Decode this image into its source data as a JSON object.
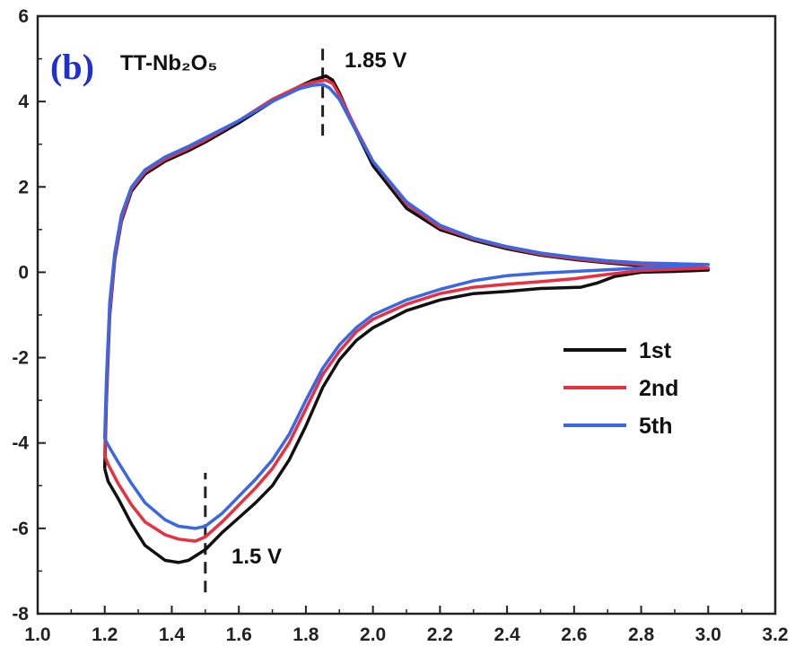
{
  "chart_data": {
    "type": "line",
    "panel_label": "(b)",
    "title": "TT-Nb₂O₅",
    "xlim": [
      1.0,
      3.2
    ],
    "ylim": [
      -8,
      6
    ],
    "x_ticks": [
      1.0,
      1.2,
      1.4,
      1.6,
      1.8,
      2.0,
      2.2,
      2.4,
      2.6,
      2.8,
      3.0,
      3.2
    ],
    "x_tick_labels": [
      "1.0",
      "1.2",
      "1.4",
      "1.6",
      "1.8",
      "2.0",
      "2.2",
      "2.4",
      "2.6",
      "2.8",
      "3.0",
      "3.2"
    ],
    "y_ticks": [
      -8,
      -6,
      -4,
      -2,
      0,
      2,
      4,
      6
    ],
    "y_tick_labels": [
      "-8",
      "-6",
      "-4",
      "-2",
      "0",
      "2",
      "4",
      "6"
    ],
    "grid": false,
    "legend_position": "right",
    "annotations": [
      {
        "text": "1.85 V",
        "x": 1.85,
        "y_from": 3.2,
        "y_to": 5.4
      },
      {
        "text": "1.5 V",
        "x": 1.5,
        "y_from": -7.5,
        "y_to": -4.7
      }
    ],
    "series": [
      {
        "name": "1st",
        "color": "#111111",
        "anodic": [
          [
            1.2,
            -4.6
          ],
          [
            1.205,
            -3.0
          ],
          [
            1.215,
            -1.0
          ],
          [
            1.23,
            0.3
          ],
          [
            1.25,
            1.2
          ],
          [
            1.28,
            1.9
          ],
          [
            1.32,
            2.3
          ],
          [
            1.38,
            2.6
          ],
          [
            1.45,
            2.85
          ],
          [
            1.5,
            3.05
          ],
          [
            1.6,
            3.5
          ],
          [
            1.7,
            4.0
          ],
          [
            1.78,
            4.35
          ],
          [
            1.82,
            4.5
          ],
          [
            1.86,
            4.6
          ],
          [
            1.88,
            4.5
          ],
          [
            1.9,
            4.2
          ],
          [
            1.95,
            3.3
          ],
          [
            2.0,
            2.5
          ],
          [
            2.1,
            1.5
          ],
          [
            2.2,
            1.0
          ],
          [
            2.3,
            0.75
          ],
          [
            2.4,
            0.55
          ],
          [
            2.5,
            0.4
          ],
          [
            2.6,
            0.3
          ],
          [
            2.7,
            0.22
          ],
          [
            2.8,
            0.15
          ],
          [
            2.9,
            0.12
          ],
          [
            3.0,
            0.05
          ]
        ],
        "cathodic": [
          [
            3.0,
            0.05
          ],
          [
            2.9,
            0.02
          ],
          [
            2.8,
            0.0
          ],
          [
            2.72,
            -0.1
          ],
          [
            2.67,
            -0.25
          ],
          [
            2.62,
            -0.35
          ],
          [
            2.5,
            -0.38
          ],
          [
            2.4,
            -0.45
          ],
          [
            2.3,
            -0.5
          ],
          [
            2.2,
            -0.65
          ],
          [
            2.1,
            -0.9
          ],
          [
            2.0,
            -1.3
          ],
          [
            1.95,
            -1.6
          ],
          [
            1.9,
            -2.05
          ],
          [
            1.85,
            -2.7
          ],
          [
            1.8,
            -3.6
          ],
          [
            1.75,
            -4.4
          ],
          [
            1.7,
            -5.0
          ],
          [
            1.65,
            -5.4
          ],
          [
            1.6,
            -5.75
          ],
          [
            1.55,
            -6.1
          ],
          [
            1.5,
            -6.5
          ],
          [
            1.45,
            -6.75
          ],
          [
            1.42,
            -6.8
          ],
          [
            1.38,
            -6.75
          ],
          [
            1.32,
            -6.4
          ],
          [
            1.28,
            -5.9
          ],
          [
            1.24,
            -5.3
          ],
          [
            1.21,
            -4.9
          ],
          [
            1.2,
            -4.6
          ]
        ]
      },
      {
        "name": "2nd",
        "color": "#e8303f",
        "anodic": [
          [
            1.2,
            -4.3
          ],
          [
            1.205,
            -2.8
          ],
          [
            1.215,
            -0.9
          ],
          [
            1.23,
            0.35
          ],
          [
            1.25,
            1.25
          ],
          [
            1.28,
            1.95
          ],
          [
            1.32,
            2.35
          ],
          [
            1.38,
            2.65
          ],
          [
            1.45,
            2.9
          ],
          [
            1.5,
            3.1
          ],
          [
            1.6,
            3.55
          ],
          [
            1.7,
            4.05
          ],
          [
            1.78,
            4.35
          ],
          [
            1.82,
            4.45
          ],
          [
            1.86,
            4.5
          ],
          [
            1.88,
            4.42
          ],
          [
            1.9,
            4.15
          ],
          [
            1.95,
            3.35
          ],
          [
            2.0,
            2.6
          ],
          [
            2.1,
            1.6
          ],
          [
            2.2,
            1.05
          ],
          [
            2.3,
            0.78
          ],
          [
            2.4,
            0.58
          ],
          [
            2.5,
            0.42
          ],
          [
            2.6,
            0.32
          ],
          [
            2.7,
            0.24
          ],
          [
            2.8,
            0.18
          ],
          [
            2.9,
            0.14
          ],
          [
            3.0,
            0.1
          ]
        ],
        "cathodic": [
          [
            3.0,
            0.1
          ],
          [
            2.9,
            0.07
          ],
          [
            2.8,
            0.04
          ],
          [
            2.7,
            -0.05
          ],
          [
            2.6,
            -0.15
          ],
          [
            2.5,
            -0.22
          ],
          [
            2.4,
            -0.28
          ],
          [
            2.3,
            -0.35
          ],
          [
            2.2,
            -0.5
          ],
          [
            2.1,
            -0.75
          ],
          [
            2.0,
            -1.1
          ],
          [
            1.95,
            -1.4
          ],
          [
            1.9,
            -1.85
          ],
          [
            1.85,
            -2.4
          ],
          [
            1.8,
            -3.2
          ],
          [
            1.75,
            -4.0
          ],
          [
            1.7,
            -4.6
          ],
          [
            1.65,
            -5.05
          ],
          [
            1.6,
            -5.45
          ],
          [
            1.55,
            -5.85
          ],
          [
            1.5,
            -6.2
          ],
          [
            1.47,
            -6.3
          ],
          [
            1.42,
            -6.25
          ],
          [
            1.38,
            -6.15
          ],
          [
            1.32,
            -5.85
          ],
          [
            1.28,
            -5.45
          ],
          [
            1.24,
            -4.95
          ],
          [
            1.21,
            -4.5
          ],
          [
            1.2,
            -4.3
          ]
        ]
      },
      {
        "name": "5th",
        "color": "#3a66e8",
        "anodic": [
          [
            1.2,
            -3.9
          ],
          [
            1.205,
            -2.5
          ],
          [
            1.215,
            -0.7
          ],
          [
            1.23,
            0.45
          ],
          [
            1.25,
            1.35
          ],
          [
            1.28,
            2.0
          ],
          [
            1.32,
            2.4
          ],
          [
            1.38,
            2.7
          ],
          [
            1.45,
            2.95
          ],
          [
            1.5,
            3.15
          ],
          [
            1.6,
            3.55
          ],
          [
            1.7,
            4.0
          ],
          [
            1.78,
            4.3
          ],
          [
            1.82,
            4.38
          ],
          [
            1.85,
            4.4
          ],
          [
            1.87,
            4.32
          ],
          [
            1.9,
            4.05
          ],
          [
            1.95,
            3.3
          ],
          [
            2.0,
            2.6
          ],
          [
            2.1,
            1.65
          ],
          [
            2.2,
            1.1
          ],
          [
            2.3,
            0.8
          ],
          [
            2.4,
            0.6
          ],
          [
            2.5,
            0.45
          ],
          [
            2.6,
            0.35
          ],
          [
            2.7,
            0.27
          ],
          [
            2.8,
            0.22
          ],
          [
            2.9,
            0.2
          ],
          [
            3.0,
            0.18
          ]
        ],
        "cathodic": [
          [
            3.0,
            0.18
          ],
          [
            2.9,
            0.14
          ],
          [
            2.8,
            0.1
          ],
          [
            2.7,
            0.06
          ],
          [
            2.6,
            0.02
          ],
          [
            2.5,
            -0.02
          ],
          [
            2.4,
            -0.08
          ],
          [
            2.3,
            -0.2
          ],
          [
            2.2,
            -0.4
          ],
          [
            2.1,
            -0.65
          ],
          [
            2.0,
            -1.0
          ],
          [
            1.95,
            -1.3
          ],
          [
            1.9,
            -1.7
          ],
          [
            1.85,
            -2.25
          ],
          [
            1.8,
            -3.0
          ],
          [
            1.75,
            -3.8
          ],
          [
            1.7,
            -4.4
          ],
          [
            1.65,
            -4.85
          ],
          [
            1.6,
            -5.25
          ],
          [
            1.55,
            -5.65
          ],
          [
            1.5,
            -5.95
          ],
          [
            1.47,
            -6.0
          ],
          [
            1.42,
            -5.95
          ],
          [
            1.38,
            -5.8
          ],
          [
            1.32,
            -5.4
          ],
          [
            1.28,
            -4.95
          ],
          [
            1.24,
            -4.45
          ],
          [
            1.21,
            -4.05
          ],
          [
            1.2,
            -3.9
          ]
        ]
      }
    ]
  }
}
